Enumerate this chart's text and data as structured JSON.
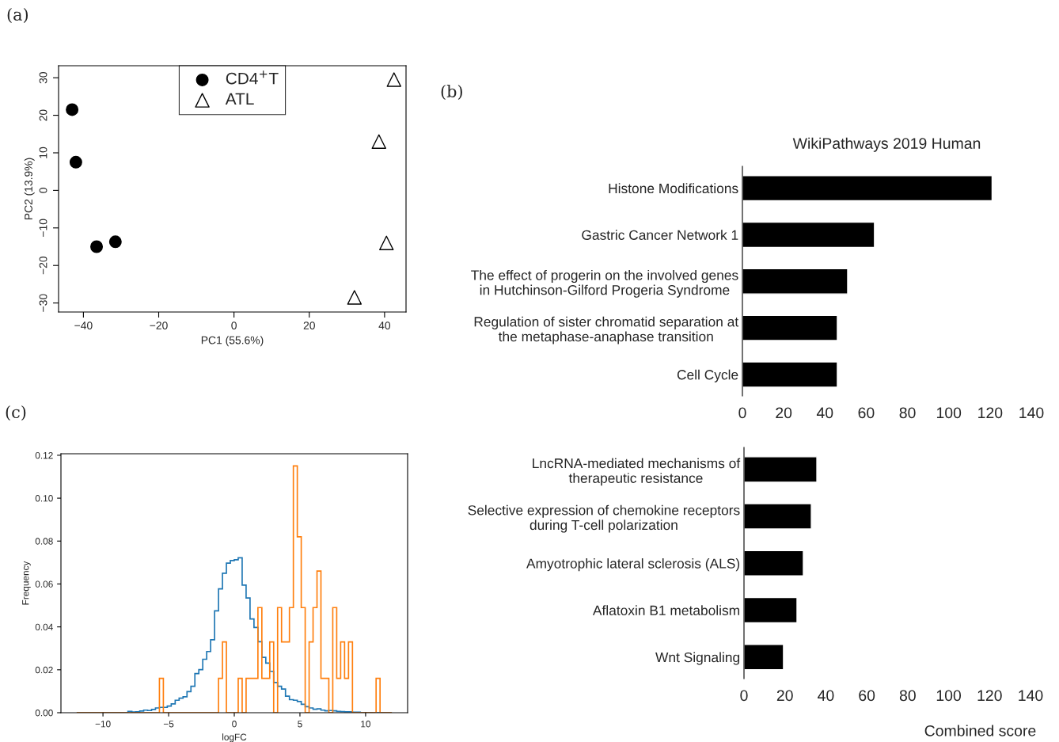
{
  "chart_data": [
    {
      "type": "scatter",
      "xlabel": "PC1 (55.6%)",
      "ylabel": "PC2 (13.9%)",
      "annotations": [
        "(a)"
      ],
      "series": [
        {
          "name": "CD4$^{+}$T",
          "color": "#000000",
          "marker": "circle",
          "x": [
            -43,
            -42,
            -36.5,
            -31.5
          ],
          "values": [
            21.5,
            7.5,
            -15,
            -13.7
          ]
        },
        {
          "name": "ATL",
          "color": "#000000",
          "marker": "triangle",
          "x": [
            42.5,
            38.5,
            40.5,
            32
          ],
          "values": [
            29.5,
            13,
            -14,
            -28.5
          ]
        }
      ],
      "xlim": [
        -46.6,
        45.7
      ],
      "ylim": [
        -32.4,
        33.2
      ],
      "xticks": [
        {
          "value": -40,
          "label": "−40"
        },
        {
          "value": -20,
          "label": "−20"
        },
        0,
        20,
        40
      ],
      "yticks": [
        {
          "value": -30,
          "label": "−30"
        },
        {
          "value": -20,
          "label": "−20"
        },
        {
          "value": -10,
          "label": "−10"
        },
        0,
        10,
        20,
        30
      ],
      "legend": "top",
      "grid": false
    },
    {
      "type": "bar",
      "orientation": "horizontal",
      "title": "WikiPathways 2019 Human",
      "annotations": [
        "(b)"
      ],
      "categories": [
        "Histone Modifications",
        "Gastric Cancer Network 1",
        "The effect of progerin on the involved genes\nin Hutchinson-Gilford Progeria Syndrome",
        "Regulation of sister chromatid separation at\nthe metaphase-anaphase transition",
        "Cell Cycle"
      ],
      "values": [
        121,
        64,
        51,
        46,
        46
      ],
      "color": "#000000",
      "xlim": [
        0,
        140
      ],
      "xticks": [
        0,
        20,
        40,
        60,
        80,
        100,
        120,
        140
      ],
      "grid": false
    },
    {
      "type": "bar",
      "orientation": "horizontal",
      "xlabel": "Combined score",
      "categories": [
        "LncRNA-mediated mechanisms of\ntherapeutic resistance",
        "Selective expression of chemokine receptors\nduring T-cell polarization",
        "Amyotrophic lateral sclerosis (ALS)",
        "Aflatoxin B1 metabolism",
        "Wnt Signaling"
      ],
      "values": [
        35.6,
        32.9,
        29,
        25.9,
        19.3
      ],
      "color": "#000000",
      "xlim": [
        0,
        140
      ],
      "xticks": [
        0,
        20,
        40,
        60,
        80,
        100,
        120,
        140
      ],
      "grid": false
    },
    {
      "type": "histogram",
      "xlabel": "logFC",
      "ylabel": "Frequency",
      "annotations": [
        "(c)"
      ],
      "series": [
        {
          "color": "#1f77b4",
          "values": [
            0.0,
            0.0,
            0.0,
            0.0,
            0.0,
            0.0,
            0.0,
            0.0,
            0.0,
            0.0,
            0.0,
            0.0,
            0.0,
            0.0006,
            0.0003,
            0.0004,
            0.0008,
            0.0012,
            0.001,
            0.0015,
            0.0022,
            0.0025,
            0.0025,
            0.0031,
            0.0041,
            0.0058,
            0.0068,
            0.0074,
            0.0098,
            0.0123,
            0.0182,
            0.0201,
            0.0249,
            0.0285,
            0.034,
            0.0475,
            0.0577,
            0.065,
            0.0697,
            0.0709,
            0.0713,
            0.0722,
            0.0595,
            0.0535,
            0.0437,
            0.0397,
            0.0331,
            0.0258,
            0.0231,
            0.0193,
            0.0141,
            0.0123,
            0.011,
            0.0077,
            0.0061,
            0.0058,
            0.0052,
            0.0039,
            0.0028,
            0.0022,
            0.0016,
            0.0018,
            0.0012,
            0.0009,
            0.001,
            0.0009,
            0.0006,
            0.0005,
            0.0004,
            0.0004,
            0.0002,
            0.0002,
            0.0001,
            0.0001,
            0.0001,
            0.0,
            0.0,
            0.0,
            0.0,
            0.0
          ]
        },
        {
          "color": "#ff7f0e",
          "values": [
            0,
            0,
            0,
            0,
            0,
            0,
            0,
            0,
            0,
            0,
            0,
            0,
            0,
            0,
            0,
            0,
            0,
            0,
            0,
            0,
            0,
            0.016,
            0,
            0,
            0,
            0,
            0,
            0,
            0,
            0,
            0,
            0,
            0,
            0,
            0,
            0,
            0.016,
            0.033,
            0,
            0,
            0,
            0.016,
            0,
            0.016,
            0.016,
            0.016,
            0.049,
            0.016,
            0.016,
            0.033,
            0,
            0.049,
            0.033,
            0.033,
            0.049,
            0.115,
            0.082,
            0.049,
            0,
            0.033,
            0.049,
            0.066,
            0.016,
            0.016,
            0,
            0.049,
            0.016,
            0.033,
            0.016,
            0.033,
            0,
            0,
            0,
            0,
            0,
            0,
            0.016,
            0,
            0,
            0
          ]
        }
      ],
      "bins": [
        -12.0,
        -11.7,
        -11.4,
        -11.1,
        -10.8,
        -10.5,
        -10.2,
        -9.9,
        -9.6,
        -9.3,
        -9.0,
        -8.7,
        -8.4,
        -8.1,
        -7.8,
        -7.5,
        -7.2,
        -6.9,
        -6.6,
        -6.3,
        -6.0,
        -5.7,
        -5.4,
        -5.1,
        -4.8,
        -4.5,
        -4.2,
        -3.9,
        -3.6,
        -3.3,
        -3.0,
        -2.7,
        -2.4,
        -2.1,
        -1.8,
        -1.5,
        -1.2,
        -0.9,
        -0.6,
        -0.3,
        0.0,
        0.3,
        0.6,
        0.9,
        1.2,
        1.5,
        1.8,
        2.1,
        2.4,
        2.7,
        3.0,
        3.3,
        3.6,
        3.9,
        4.2,
        4.5,
        4.8,
        5.1,
        5.4,
        5.7,
        6.0,
        6.3,
        6.6,
        6.9,
        7.2,
        7.5,
        7.8,
        8.1,
        8.4,
        8.7,
        9.0,
        9.3,
        9.6,
        9.9,
        10.2,
        10.5,
        10.8,
        11.1,
        11.4,
        11.7,
        12.0
      ],
      "xlim": [
        -13.2,
        13.2
      ],
      "ylim": [
        0,
        0.1207
      ],
      "xticks": [
        {
          "value": -10,
          "label": "−10"
        },
        {
          "value": -5,
          "label": "−5"
        },
        0,
        5,
        10
      ],
      "yticks": [
        {
          "value": 0,
          "label": "0.00"
        },
        {
          "value": 0.02,
          "label": "0.02"
        },
        {
          "value": 0.04,
          "label": "0.04"
        },
        {
          "value": 0.06,
          "label": "0.06"
        },
        {
          "value": 0.08,
          "label": "0.08"
        },
        {
          "value": 0.1,
          "label": "0.10"
        },
        {
          "value": 0.12,
          "label": "0.12"
        }
      ],
      "grid": false
    }
  ]
}
